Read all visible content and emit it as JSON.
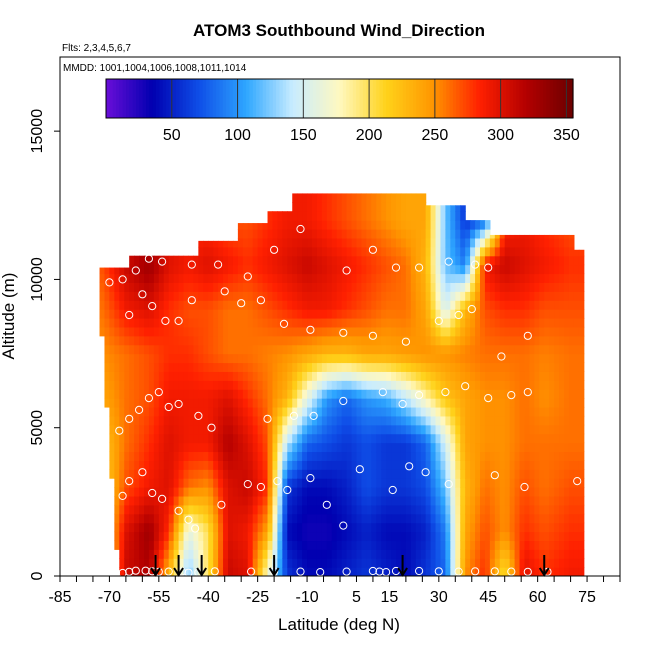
{
  "chart_data": {
    "type": "heatmap",
    "title": "ATOM3 Southbound Wind_Direction",
    "flights_note": "Flts: 2,3,4,5,6,7",
    "dates_note": "MMDD: 1001,1004,1006,1008,1011,1014",
    "xlabel": "Latitude (deg N)",
    "ylabel": "Altitude (m)",
    "xlim": [
      -85,
      85
    ],
    "ylim": [
      0,
      17500
    ],
    "x_ticks": [
      -85,
      -70,
      -55,
      -40,
      -25,
      -10,
      5,
      15,
      30,
      45,
      60,
      75
    ],
    "y_ticks": [
      0,
      5000,
      10000,
      15000
    ],
    "colorbar": {
      "range": [
        0,
        355
      ],
      "ticks": [
        50,
        100,
        150,
        200,
        250,
        300,
        350
      ],
      "colors": [
        "#6a0dd8",
        "#0000b0",
        "#0f4fe8",
        "#2ea6ff",
        "#c8ecff",
        "#fff8c0",
        "#ffd21a",
        "#ff9600",
        "#ff2000",
        "#b30000",
        "#6b0000"
      ]
    },
    "wind_direction_field": {
      "latitude_nodes": [
        -72,
        -65,
        -58,
        -52,
        -46,
        -40,
        -34,
        -28,
        -22,
        -16,
        -10,
        -4,
        2,
        8,
        14,
        20,
        26,
        32,
        38,
        44,
        50,
        56,
        62,
        70
      ],
      "altitude_nodes": [
        0,
        1500,
        3000,
        4500,
        6000,
        7500,
        9000,
        10500,
        12000
      ],
      "values": [
        [
          180,
          310,
          320,
          230,
          120,
          200,
          310,
          300,
          170,
          60,
          40,
          40,
          50,
          60,
          50,
          40,
          60,
          80,
          250,
          280,
          200,
          300,
          280,
          290
        ],
        [
          200,
          300,
          330,
          280,
          160,
          200,
          300,
          290,
          240,
          40,
          30,
          30,
          40,
          50,
          40,
          40,
          50,
          90,
          240,
          270,
          250,
          280,
          270,
          280
        ],
        [
          210,
          270,
          290,
          300,
          260,
          250,
          300,
          310,
          280,
          60,
          40,
          40,
          50,
          70,
          60,
          60,
          70,
          120,
          230,
          260,
          250,
          270,
          260,
          270
        ],
        [
          220,
          260,
          280,
          300,
          290,
          290,
          320,
          300,
          270,
          140,
          80,
          70,
          60,
          70,
          60,
          60,
          80,
          150,
          240,
          250,
          250,
          260,
          260,
          260
        ],
        [
          240,
          260,
          270,
          290,
          290,
          290,
          300,
          280,
          260,
          230,
          160,
          100,
          80,
          100,
          110,
          140,
          180,
          220,
          240,
          250,
          250,
          260,
          250,
          260
        ],
        [
          250,
          260,
          270,
          280,
          280,
          270,
          260,
          260,
          255,
          250,
          240,
          230,
          230,
          240,
          240,
          245,
          250,
          250,
          255,
          260,
          260,
          260,
          255,
          260
        ],
        [
          260,
          290,
          300,
          280,
          270,
          270,
          260,
          260,
          270,
          280,
          290,
          290,
          280,
          270,
          260,
          260,
          240,
          150,
          230,
          270,
          280,
          280,
          270,
          270
        ],
        [
          270,
          310,
          330,
          300,
          290,
          300,
          290,
          280,
          290,
          300,
          310,
          300,
          290,
          280,
          270,
          260,
          230,
          120,
          90,
          290,
          310,
          300,
          290,
          280
        ],
        [
          260,
          280,
          290,
          290,
          280,
          280,
          270,
          270,
          280,
          290,
          290,
          280,
          270,
          260,
          250,
          240,
          240,
          120,
          60,
          80,
          280,
          290,
          280,
          270
        ]
      ]
    },
    "flight_markers_lat": [
      -56,
      -49,
      -42,
      -20,
      19,
      62
    ],
    "sample_points": [
      [
        -70,
        100
      ],
      [
        -68,
        110
      ],
      [
        -66,
        100
      ],
      [
        -64,
        140
      ],
      [
        -62,
        180
      ],
      [
        -59,
        180
      ],
      [
        -57,
        160
      ],
      [
        -55,
        140
      ],
      [
        -52,
        150
      ],
      [
        -48,
        150
      ],
      [
        -46,
        110
      ],
      [
        -43,
        120
      ],
      [
        -38,
        160
      ],
      [
        -27,
        150
      ],
      [
        -20,
        150
      ],
      [
        -12,
        150
      ],
      [
        -6,
        130
      ],
      [
        2,
        150
      ],
      [
        10,
        170
      ],
      [
        12,
        150
      ],
      [
        14,
        130
      ],
      [
        17,
        170
      ],
      [
        24,
        170
      ],
      [
        30,
        160
      ],
      [
        36,
        150
      ],
      [
        41,
        160
      ],
      [
        47,
        160
      ],
      [
        52,
        150
      ],
      [
        57,
        140
      ],
      [
        63,
        140
      ],
      [
        -66,
        2700
      ],
      [
        -64,
        3200
      ],
      [
        -60,
        3500
      ],
      [
        -57,
        2800
      ],
      [
        -54,
        2600
      ],
      [
        -49,
        2200
      ],
      [
        -46,
        1900
      ],
      [
        -44,
        1600
      ],
      [
        -36,
        2400
      ],
      [
        -28,
        3100
      ],
      [
        -24,
        3000
      ],
      [
        -19,
        3200
      ],
      [
        -16,
        2900
      ],
      [
        -9,
        3300
      ],
      [
        -4,
        2400
      ],
      [
        1,
        1700
      ],
      [
        6,
        3600
      ],
      [
        16,
        2900
      ],
      [
        21,
        3700
      ],
      [
        26,
        3500
      ],
      [
        33,
        3100
      ],
      [
        47,
        3400
      ],
      [
        56,
        3000
      ],
      [
        72,
        3200
      ],
      [
        -67,
        4900
      ],
      [
        -64,
        5300
      ],
      [
        -61,
        5600
      ],
      [
        -58,
        6000
      ],
      [
        -55,
        6200
      ],
      [
        -52,
        5700
      ],
      [
        -49,
        5800
      ],
      [
        -43,
        5400
      ],
      [
        -39,
        5000
      ],
      [
        -22,
        5300
      ],
      [
        -14,
        5400
      ],
      [
        -8,
        5400
      ],
      [
        1,
        5900
      ],
      [
        13,
        6200
      ],
      [
        19,
        5800
      ],
      [
        24,
        6100
      ],
      [
        32,
        6200
      ],
      [
        38,
        6400
      ],
      [
        45,
        6000
      ],
      [
        52,
        6100
      ],
      [
        57,
        6200
      ],
      [
        -64,
        8800
      ],
      [
        -60,
        9500
      ],
      [
        -57,
        9100
      ],
      [
        -53,
        8600
      ],
      [
        -49,
        8600
      ],
      [
        -45,
        9300
      ],
      [
        -35,
        9600
      ],
      [
        -30,
        9200
      ],
      [
        -24,
        9300
      ],
      [
        -17,
        8500
      ],
      [
        -9,
        8300
      ],
      [
        1,
        8200
      ],
      [
        10,
        8100
      ],
      [
        20,
        7900
      ],
      [
        30,
        8600
      ],
      [
        36,
        8800
      ],
      [
        40,
        9000
      ],
      [
        49,
        7400
      ],
      [
        57,
        8100
      ],
      [
        -70,
        9900
      ],
      [
        -66,
        10000
      ],
      [
        -62,
        10300
      ],
      [
        -58,
        10700
      ],
      [
        -54,
        10600
      ],
      [
        -45,
        10500
      ],
      [
        -37,
        10500
      ],
      [
        -28,
        10100
      ],
      [
        -20,
        11000
      ],
      [
        -12,
        11700
      ],
      [
        2,
        10300
      ],
      [
        10,
        11000
      ],
      [
        17,
        10400
      ],
      [
        24,
        10400
      ],
      [
        33,
        10600
      ],
      [
        41,
        10500
      ],
      [
        45,
        10400
      ],
      [
        60,
        11800
      ],
      [
        69,
        11900
      ]
    ]
  }
}
